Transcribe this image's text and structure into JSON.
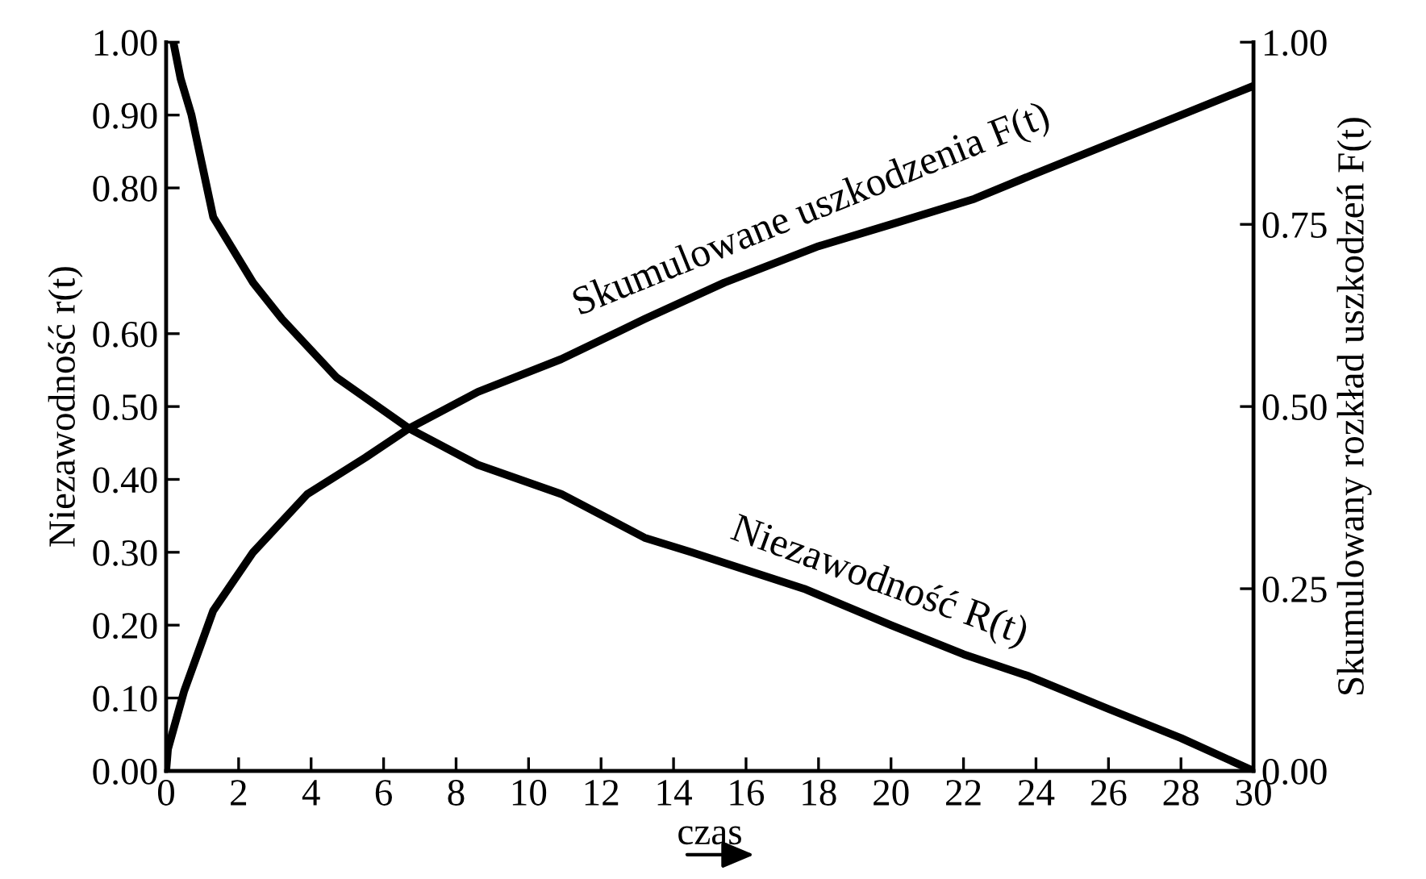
{
  "chart_data": {
    "type": "line",
    "xlabel": "czas",
    "ylabel": "Niezawodność r(t)",
    "y2label": "Skumulowany rozkład uszkodzeń F(t)",
    "xlim": [
      0,
      30
    ],
    "xticks": [
      0,
      2,
      4,
      6,
      8,
      10,
      12,
      14,
      16,
      18,
      20,
      22,
      24,
      26,
      28,
      30
    ],
    "ylim": [
      0,
      1
    ],
    "yticks": [
      {
        "value": 0,
        "label": "0.00"
      },
      {
        "value": 0.1,
        "label": "0.10"
      },
      {
        "value": 0.2,
        "label": "0.20"
      },
      {
        "value": 0.3,
        "label": "0.30"
      },
      {
        "value": 0.4,
        "label": "0.40"
      },
      {
        "value": 0.5,
        "label": "0.50"
      },
      {
        "value": 0.6,
        "label": "0.60"
      },
      {
        "value": 0.8,
        "label": "0.80"
      },
      {
        "value": 0.9,
        "label": "0.90"
      },
      {
        "value": 1,
        "label": "1.00"
      }
    ],
    "y2lim": [
      0,
      1
    ],
    "y2ticks": [
      {
        "value": 0,
        "label": "0.00"
      },
      {
        "value": 0.25,
        "label": "0.25"
      },
      {
        "value": 0.5,
        "label": "0.50"
      },
      {
        "value": 0.75,
        "label": "0.75"
      },
      {
        "value": 1,
        "label": "1.00"
      }
    ],
    "grid": false,
    "legend": false,
    "marker": "none",
    "line_style": "solid",
    "series": [
      {
        "name": "Skumulowane uszkodzenia F(t)",
        "color": "#000000",
        "x": [
          0,
          0.05,
          0.5,
          1.3,
          2.4,
          3.9,
          5.5,
          6.7,
          8.6,
          10.9,
          13.2,
          15.4,
          18,
          20,
          22.3,
          24,
          26,
          28,
          30
        ],
        "values": [
          0,
          0.03,
          0.11,
          0.22,
          0.3,
          0.38,
          0.43,
          0.47,
          0.52,
          0.565,
          0.62,
          0.67,
          0.72,
          0.75,
          0.785,
          0.82,
          0.86,
          0.9,
          0.94
        ]
      },
      {
        "name": "Niezawodność R(t)",
        "color": "#000000",
        "x": [
          0.2,
          0.4,
          0.7,
          1.3,
          2.4,
          3.2,
          4.7,
          6.7,
          8.6,
          10.9,
          13.2,
          14.5,
          17.6,
          20,
          22,
          23.8,
          26,
          28,
          30
        ],
        "values": [
          1,
          0.95,
          0.9,
          0.76,
          0.67,
          0.62,
          0.54,
          0.47,
          0.42,
          0.38,
          0.32,
          0.3,
          0.25,
          0.2,
          0.16,
          0.13,
          0.085,
          0.045,
          0
        ]
      }
    ]
  }
}
